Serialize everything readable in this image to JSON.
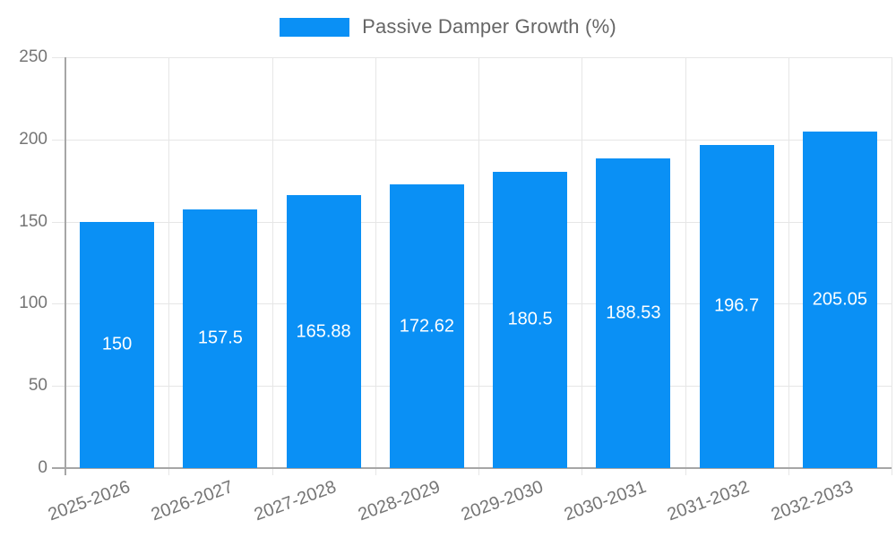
{
  "chart_data": {
    "type": "bar",
    "title": "",
    "xlabel": "",
    "ylabel": "",
    "legend": {
      "position": "top-center",
      "label": "Passive Damper Growth (%)"
    },
    "categories": [
      "2025-2026",
      "2026-2027",
      "2027-2028",
      "2028-2029",
      "2029-2030",
      "2030-2031",
      "2031-2032",
      "2032-2033"
    ],
    "values": [
      150,
      157.5,
      165.88,
      172.62,
      180.5,
      188.53,
      196.7,
      205.05
    ],
    "value_labels": [
      "150",
      "157.5",
      "165.88",
      "172.62",
      "180.5",
      "188.53",
      "196.7",
      "205.05"
    ],
    "y_ticks": [
      0,
      50,
      100,
      150,
      200,
      250
    ],
    "ylim": [
      0,
      250
    ],
    "grid": "both",
    "x_label_rotation_deg": -20,
    "colors": {
      "bar": "#0a90f5",
      "grid_line": "#e6e6e6",
      "axis_line": "#a6a6a6",
      "tick_label": "#757575",
      "legend_text": "#666666",
      "value_label": "#ffffff",
      "background": "#ffffff"
    }
  }
}
